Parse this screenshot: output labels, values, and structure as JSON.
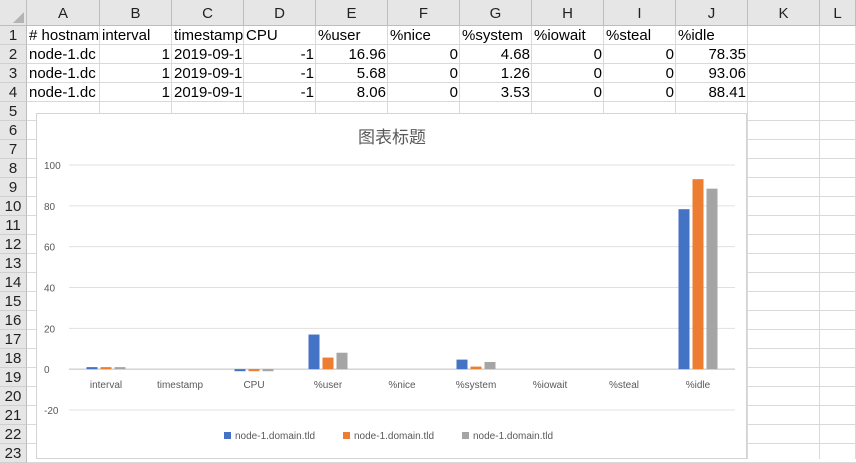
{
  "spreadsheet": {
    "columns": [
      "A",
      "B",
      "C",
      "D",
      "E",
      "F",
      "G",
      "H",
      "I",
      "J",
      "K",
      "L"
    ],
    "rows": [
      "1",
      "2",
      "3",
      "4",
      "5",
      "6",
      "7",
      "8",
      "9",
      "10",
      "11",
      "12",
      "13",
      "14",
      "15",
      "16",
      "17",
      "18",
      "19",
      "20",
      "21",
      "22",
      "23"
    ],
    "header_row": [
      "# hostnam",
      "interval",
      "timestamp",
      "CPU",
      "%user",
      "%nice",
      "%system",
      "%iowait",
      "%steal",
      "%idle"
    ],
    "data_rows": [
      [
        "node-1.dc",
        "1",
        "2019-09-1",
        "-1",
        "16.96",
        "0",
        "4.68",
        "0",
        "0",
        "78.35"
      ],
      [
        "node-1.dc",
        "1",
        "2019-09-1",
        "-1",
        "5.68",
        "0",
        "1.26",
        "0",
        "0",
        "93.06"
      ],
      [
        "node-1.dc",
        "1",
        "2019-09-1",
        "-1",
        "8.06",
        "0",
        "3.53",
        "0",
        "0",
        "88.41"
      ]
    ]
  },
  "chart_data": {
    "type": "bar",
    "title": "图表标题",
    "categories": [
      "interval",
      "timestamp",
      "CPU",
      "%user",
      "%nice",
      "%system",
      "%iowait",
      "%steal",
      "%idle"
    ],
    "series": [
      {
        "name": "node-1.domain.tld",
        "color": "#4472c4",
        "values": [
          1,
          0,
          -1,
          16.96,
          0,
          4.68,
          0,
          0,
          78.35
        ]
      },
      {
        "name": "node-1.domain.tld",
        "color": "#ed7d31",
        "values": [
          1,
          0,
          -1,
          5.68,
          0,
          1.26,
          0,
          0,
          93.06
        ]
      },
      {
        "name": "node-1.domain.tld",
        "color": "#a5a5a5",
        "values": [
          1,
          0,
          -1,
          8.06,
          0,
          3.53,
          0,
          0,
          88.41
        ]
      }
    ],
    "yticks": [
      100,
      80,
      60,
      40,
      20,
      0,
      -20
    ],
    "ylim": [
      -20,
      100
    ],
    "grid": true,
    "legend": "bottom"
  }
}
